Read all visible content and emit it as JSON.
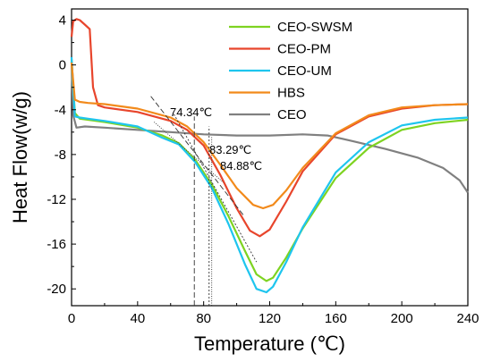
{
  "chart_data": {
    "type": "line",
    "xlabel": "Temperature (℃)",
    "ylabel": "Heat Flow(w/g)",
    "xlim": [
      0,
      240
    ],
    "ylim": [
      -21.5,
      5
    ],
    "xticks": [
      "0",
      "40",
      "80",
      "120",
      "160",
      "200",
      "240"
    ],
    "yticks": [
      "4",
      "0",
      "-4",
      "-8",
      "-12",
      "-16",
      "-20"
    ],
    "legend": "top-right",
    "grid": false,
    "series": [
      {
        "name": "CEO-SWSM",
        "color": "#7ed321",
        "x": [
          0,
          2,
          5,
          10,
          20,
          40,
          55,
          65,
          75,
          85,
          95,
          105,
          112,
          118,
          122,
          130,
          140,
          160,
          180,
          200,
          220,
          240
        ],
        "y": [
          0.5,
          -4.3,
          -4.8,
          -4.9,
          -5.1,
          -5.6,
          -6.3,
          -7.0,
          -8.5,
          -10.7,
          -13.5,
          -16.6,
          -18.7,
          -19.3,
          -19.0,
          -17.2,
          -14.6,
          -10.1,
          -7.4,
          -5.8,
          -5.2,
          -4.9
        ]
      },
      {
        "name": "CEO-PM",
        "color": "#e8452c",
        "x": [
          0,
          1,
          3,
          5,
          8,
          11,
          13,
          16,
          20,
          40,
          60,
          70,
          80,
          90,
          100,
          108,
          114,
          120,
          130,
          140,
          160,
          180,
          200,
          220,
          240
        ],
        "y": [
          2.5,
          3.9,
          4.1,
          4.0,
          3.6,
          3.2,
          -2.0,
          -3.6,
          -3.8,
          -4.2,
          -5.0,
          -5.8,
          -7.2,
          -9.8,
          -12.8,
          -14.8,
          -15.3,
          -14.7,
          -12.2,
          -9.5,
          -6.2,
          -4.6,
          -3.9,
          -3.6,
          -3.5
        ]
      },
      {
        "name": "CEO-UM",
        "color": "#1ec5ee",
        "x": [
          0,
          2,
          5,
          10,
          20,
          40,
          55,
          65,
          75,
          85,
          95,
          105,
          112,
          118,
          122,
          130,
          140,
          160,
          180,
          200,
          220,
          240
        ],
        "y": [
          0.7,
          -4.6,
          -4.7,
          -4.8,
          -5.0,
          -5.5,
          -6.5,
          -7.1,
          -8.7,
          -11.0,
          -14.2,
          -17.8,
          -20.0,
          -20.3,
          -19.8,
          -17.6,
          -14.5,
          -9.6,
          -6.9,
          -5.4,
          -4.9,
          -4.7
        ]
      },
      {
        "name": "HBS",
        "color": "#f28a1b",
        "x": [
          0,
          2,
          5,
          10,
          20,
          40,
          60,
          70,
          80,
          90,
          100,
          110,
          116,
          122,
          130,
          140,
          160,
          180,
          200,
          220,
          240
        ],
        "y": [
          0.2,
          -3.1,
          -3.3,
          -3.4,
          -3.5,
          -3.9,
          -4.7,
          -5.5,
          -6.9,
          -8.9,
          -11.0,
          -12.5,
          -12.8,
          -12.5,
          -11.2,
          -9.2,
          -6.1,
          -4.5,
          -3.8,
          -3.6,
          -3.5
        ]
      },
      {
        "name": "CEO",
        "color": "#808080",
        "x": [
          0,
          1,
          3,
          8,
          20,
          40,
          60,
          80,
          100,
          120,
          140,
          155,
          170,
          190,
          210,
          225,
          235,
          240
        ],
        "y": [
          0.3,
          -4.5,
          -5.6,
          -5.5,
          -5.6,
          -5.8,
          -6.0,
          -6.2,
          -6.3,
          -6.3,
          -6.2,
          -6.3,
          -6.8,
          -7.5,
          -8.3,
          -9.2,
          -10.3,
          -11.4
        ]
      }
    ],
    "annotations": [
      {
        "text": "74.34℃",
        "x": 74.34
      },
      {
        "text": "83.29℃",
        "x": 83.29
      },
      {
        "text": "84.88℃",
        "x": 84.88
      }
    ]
  }
}
